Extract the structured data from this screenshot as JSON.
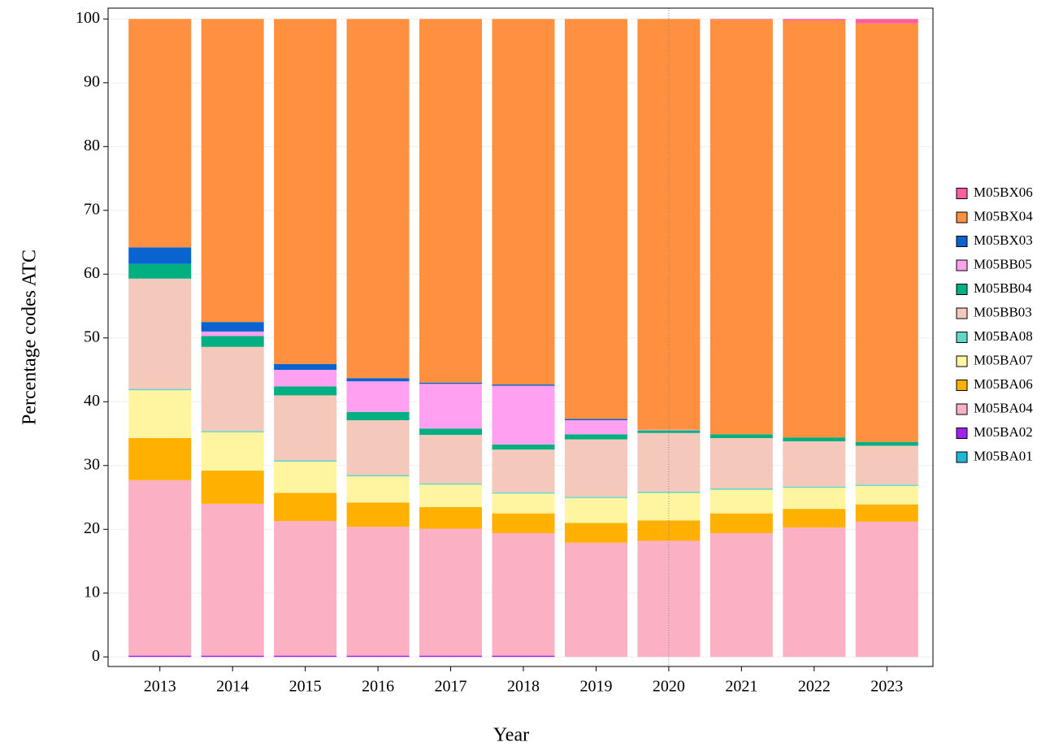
{
  "chart_data": {
    "type": "stacked_bar",
    "x_label": "Year",
    "y_label": "Percentage codes ATC",
    "categories": [
      "2013",
      "2014",
      "2015",
      "2016",
      "2017",
      "2018",
      "2019",
      "2020",
      "2021",
      "2022",
      "2023"
    ],
    "vline": "2020",
    "ylim": [
      -1.5,
      101.7
    ],
    "yticks": [
      0,
      10,
      20,
      30,
      40,
      50,
      60,
      70,
      80,
      90,
      100
    ],
    "grid": true,
    "legend": "right",
    "series": [
      {
        "name": "M05BA01",
        "color": "#1fb6d6",
        "values": [
          0,
          0,
          0,
          0,
          0,
          0,
          0,
          0,
          0,
          0,
          0
        ]
      },
      {
        "name": "M05BA02",
        "color": "#a020f0",
        "values": [
          0.2,
          0.2,
          0.2,
          0.2,
          0.2,
          0.2,
          0,
          0,
          0,
          0,
          0
        ]
      },
      {
        "name": "M05BA04",
        "color": "#fbb0c4",
        "values": [
          27.5,
          23.8,
          21.1,
          20.2,
          19.9,
          19.2,
          17.9,
          18.2,
          19.4,
          20.3,
          21.2
        ]
      },
      {
        "name": "M05BA06",
        "color": "#ffb000",
        "values": [
          6.6,
          5.2,
          4.4,
          3.8,
          3.4,
          3.1,
          3.1,
          3.2,
          3.1,
          2.9,
          2.7
        ]
      },
      {
        "name": "M05BA07",
        "color": "#fff5a0",
        "values": [
          7.5,
          6.0,
          4.9,
          4.1,
          3.5,
          3.1,
          3.9,
          4.3,
          3.7,
          3.3,
          2.9
        ]
      },
      {
        "name": "M05BA08",
        "color": "#5fd8c8",
        "values": [
          0.2,
          0.2,
          0.2,
          0.2,
          0.2,
          0.2,
          0.2,
          0.2,
          0.2,
          0.2,
          0.2
        ]
      },
      {
        "name": "M05BB03",
        "color": "#f5c8bc",
        "values": [
          17.3,
          13.2,
          10.2,
          8.6,
          7.6,
          6.7,
          9.0,
          9.2,
          7.9,
          7.1,
          6.1
        ]
      },
      {
        "name": "M05BB04",
        "color": "#00b080",
        "values": [
          2.3,
          1.7,
          1.4,
          1.3,
          1.0,
          0.8,
          0.8,
          0.4,
          0.6,
          0.6,
          0.6
        ]
      },
      {
        "name": "M05BB05",
        "color": "#ffa0f0",
        "values": [
          0,
          0.7,
          2.6,
          4.8,
          7.0,
          9.2,
          2.2,
          0.1,
          0,
          0,
          0
        ]
      },
      {
        "name": "M05BX03",
        "color": "#0a64d0",
        "values": [
          2.6,
          1.5,
          0.9,
          0.5,
          0.2,
          0.2,
          0.2,
          0,
          0,
          0,
          0
        ]
      },
      {
        "name": "M05BX04",
        "color": "#ff9040",
        "values": [
          35.8,
          47.5,
          54.1,
          56.3,
          57.0,
          57.3,
          62.7,
          64.4,
          65.0,
          65.4,
          65.6
        ]
      },
      {
        "name": "M05BX06",
        "color": "#ff5fa2",
        "values": [
          0,
          0,
          0,
          0,
          0,
          0,
          0,
          0,
          0.1,
          0.2,
          0.7
        ]
      }
    ]
  }
}
